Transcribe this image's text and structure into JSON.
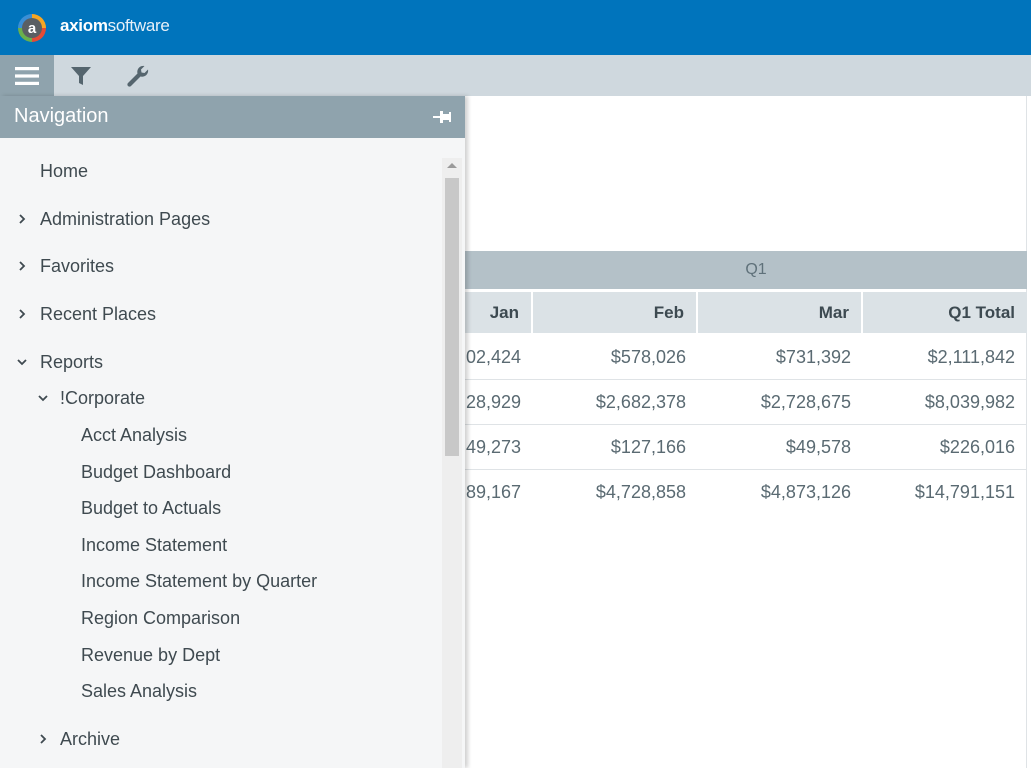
{
  "header": {
    "logo_letter": "a",
    "brand_bold": "axiom",
    "brand_light": "software"
  },
  "toolbar": {
    "icons": [
      "menu-icon",
      "filter-icon",
      "wrench-icon"
    ]
  },
  "navigation": {
    "title": "Navigation",
    "items": {
      "home": "Home",
      "administration": "Administration Pages",
      "favorites": "Favorites",
      "recent": "Recent Places",
      "reports": "Reports",
      "corporate": "!Corporate",
      "acct_analysis": "Acct Analysis",
      "budget_dashboard": "Budget Dashboard",
      "budget_actuals": "Budget to Actuals",
      "income_statement": "Income Statement",
      "income_quarter": "Income Statement by Quarter",
      "region_comparison": "Region Comparison",
      "revenue_dept": "Revenue by Dept",
      "sales_analysis": "Sales Analysis",
      "archive": "Archive"
    }
  },
  "report": {
    "band": "Q1",
    "columns": {
      "jan": "Jan",
      "feb": "Feb",
      "mar": "Mar",
      "total": "Q1 Total"
    },
    "rows": [
      {
        "jan": "02,424",
        "feb": "$578,026",
        "mar": "$731,392",
        "total": "$2,111,842"
      },
      {
        "jan": "28,929",
        "feb": "$2,682,378",
        "mar": "$2,728,675",
        "total": "$8,039,982"
      },
      {
        "jan": "49,273",
        "feb": "$127,166",
        "mar": "$49,578",
        "total": "$226,016"
      },
      {
        "jan": "89,167",
        "feb": "$4,728,858",
        "mar": "$4,873,126",
        "total": "$14,791,151"
      }
    ]
  },
  "colors": {
    "header_blue": "#0074bc",
    "toolbar_gray": "#cfd8de",
    "nav_title_gray": "#8fa3ad",
    "band_gray": "#b4c1c8"
  }
}
